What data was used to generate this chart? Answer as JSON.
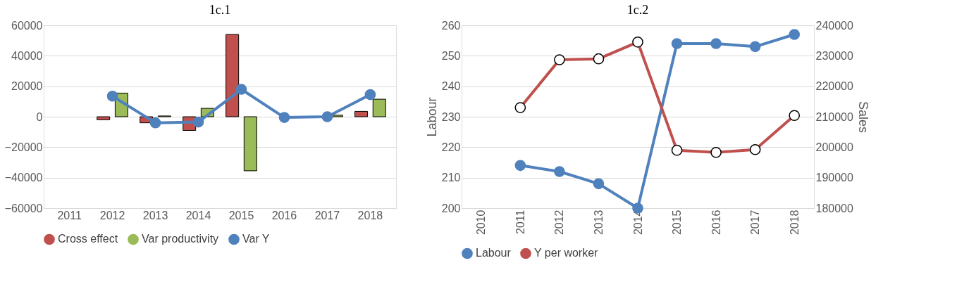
{
  "chart_data": [
    {
      "type": "bar",
      "title": "1c.1",
      "categories": [
        "2011",
        "2012",
        "2013",
        "2014",
        "2015",
        "2016",
        "2017",
        "2018"
      ],
      "series": [
        {
          "name": "Cross effect",
          "color": "#c0504d",
          "values": [
            null,
            -2000,
            -4000,
            -9000,
            54000,
            null,
            null,
            3500
          ]
        },
        {
          "name": "Var productivity",
          "color": "#9bbb59",
          "values": [
            null,
            15500,
            500,
            5500,
            -35500,
            null,
            1000,
            11500
          ]
        },
        {
          "name": "Var Y",
          "type": "line",
          "color": "#4f81bd",
          "values": [
            null,
            13500,
            -4000,
            -3500,
            18000,
            -500,
            0,
            14500
          ]
        }
      ],
      "ylim": [
        -60000,
        60000
      ],
      "yticks": [
        -60000,
        -40000,
        -20000,
        0,
        20000,
        40000,
        60000
      ],
      "grid": "y",
      "legend": "bottom",
      "marker": "circle"
    },
    {
      "type": "line",
      "title": "1c.2",
      "ylabel": "Labour",
      "y2label": "Sales",
      "categories": [
        "2010",
        "2011",
        "2012",
        "2013",
        "2014",
        "2015",
        "2016",
        "2017",
        "2018"
      ],
      "series": [
        {
          "name": "Labour",
          "color": "#4f81bd",
          "values": [
            null,
            214,
            212,
            208,
            200,
            254,
            254,
            253,
            257
          ]
        },
        {
          "name": "Y per worker",
          "color": "#c0504d",
          "axis": "y2",
          "values": [
            null,
            213000,
            228700,
            229000,
            234500,
            199000,
            198300,
            199200,
            210400
          ]
        }
      ],
      "ylim": [
        200,
        260
      ],
      "yticks": [
        200,
        210,
        220,
        230,
        240,
        250,
        260
      ],
      "y2lim": [
        180000,
        240000
      ],
      "y2ticks": [
        180000,
        190000,
        200000,
        210000,
        220000,
        230000,
        240000
      ],
      "grid": "y",
      "legend": "bottom",
      "marker": "circle"
    }
  ]
}
